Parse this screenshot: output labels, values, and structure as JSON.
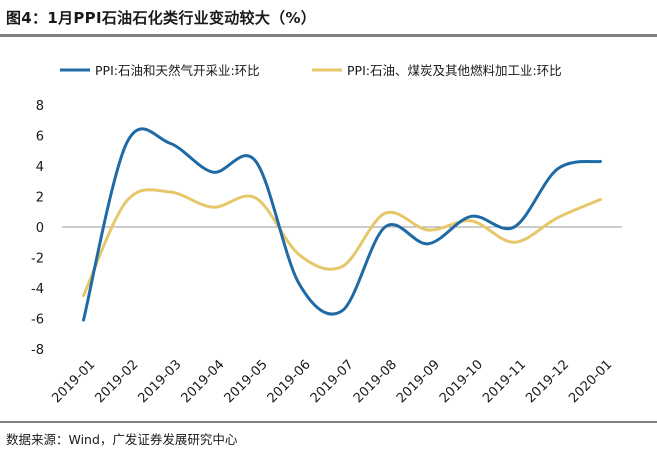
{
  "header": {
    "title": "图4：1月PPI石油石化类行业变动较大（%）"
  },
  "footer": {
    "source": "数据来源：Wind，广发证券发展研究中心"
  },
  "chart_data": {
    "type": "line",
    "title": "",
    "xlabel": "",
    "ylabel": "",
    "ylim": [
      -8,
      8
    ],
    "yticks": [
      8,
      6,
      4,
      2,
      0,
      -2,
      -4,
      -6,
      -8
    ],
    "grid": false,
    "legend_position": "top",
    "categories": [
      "2019-01",
      "2019-02",
      "2019-03",
      "2019-04",
      "2019-05",
      "2019-06",
      "2019-07",
      "2019-08",
      "2019-09",
      "2019-10",
      "2019-11",
      "2019-12",
      "2020-01"
    ],
    "series": [
      {
        "name": "PPI:石油和天然气开采业:环比",
        "color": "#1f6aa5",
        "values": [
          -6.1,
          5.5,
          5.5,
          3.6,
          4.3,
          -3.7,
          -5.5,
          0.0,
          -1.1,
          0.7,
          0.0,
          3.8,
          4.3
        ]
      },
      {
        "name": "PPI:石油、煤炭及其他燃料加工业:环比",
        "color": "#e6c86b",
        "values": [
          -4.5,
          1.7,
          2.3,
          1.3,
          1.9,
          -1.8,
          -2.6,
          0.9,
          -0.2,
          0.4,
          -1.0,
          0.6,
          1.8
        ]
      }
    ]
  }
}
